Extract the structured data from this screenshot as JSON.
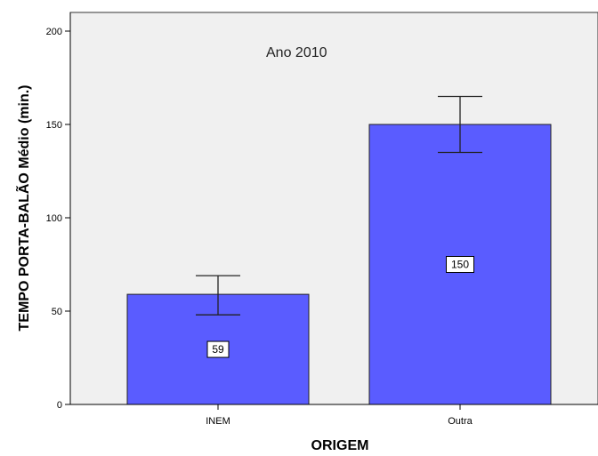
{
  "chart_data": {
    "type": "bar",
    "title": "",
    "annotation": "Ano 2010",
    "xlabel": "ORIGEM",
    "ylabel": "TEMPO PORTA-BALÃO Médio (min.)",
    "categories": [
      "INEM",
      "Outra"
    ],
    "values": [
      59,
      150
    ],
    "data_labels": [
      "59",
      "150"
    ],
    "error_bars": [
      {
        "low": 48,
        "high": 69
      },
      {
        "low": 135,
        "high": 165
      }
    ],
    "ylim": [
      0,
      210
    ],
    "yticks": [
      0,
      50,
      100,
      150,
      200
    ],
    "ytick_labels": [
      "0",
      "50",
      "100",
      "150",
      "200"
    ],
    "grid": false,
    "colors": {
      "bar": "#5a5cff",
      "plot_background": "#f0f0f0",
      "axis": "#000000"
    }
  }
}
